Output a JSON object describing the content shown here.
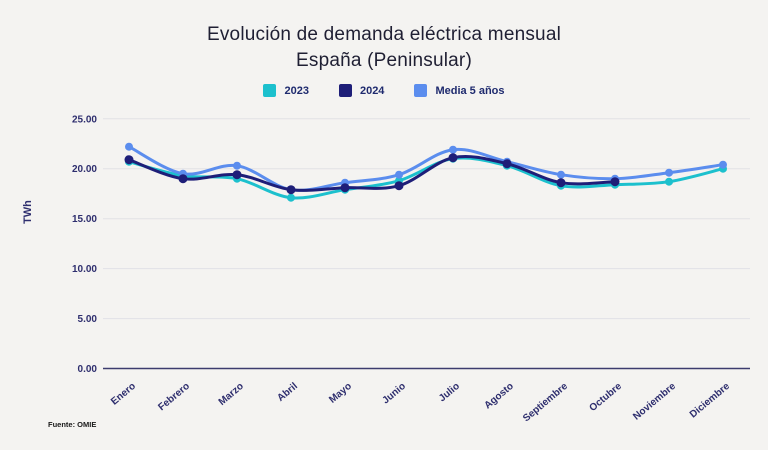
{
  "title": {
    "line1": "Evolución de demanda eléctrica mensual",
    "line2": "España (Peninsular)"
  },
  "legend": [
    {
      "label": "2023",
      "color": "#1cc0cd"
    },
    {
      "label": "2024",
      "color": "#1e1e78"
    },
    {
      "label": "Media 5 años",
      "color": "#5b8dee"
    }
  ],
  "source": "Fuente: OMIE",
  "colors": {
    "background": "#f4f3f1",
    "gridline": "#e1e1e6",
    "axis": "#3c3c6e",
    "tick_text": "#2e2e6e"
  },
  "chart_data": {
    "type": "line",
    "categories": [
      "Enero",
      "Febrero",
      "Marzo",
      "Abril",
      "Mayo",
      "Junio",
      "Julio",
      "Agosto",
      "Septiembre",
      "Octubre",
      "Noviembre",
      "Diciembre"
    ],
    "series": [
      {
        "name": "2023",
        "color": "#1cc0cd",
        "values": [
          20.7,
          19.3,
          19.0,
          17.1,
          17.9,
          18.8,
          21.0,
          20.3,
          18.3,
          18.4,
          18.7,
          20.0
        ]
      },
      {
        "name": "2024",
        "color": "#1e1e78",
        "values": [
          20.9,
          19.0,
          19.4,
          17.9,
          18.1,
          18.3,
          21.1,
          20.5,
          18.6,
          18.7,
          null,
          null
        ]
      },
      {
        "name": "Media 5 años",
        "color": "#5b8dee",
        "values": [
          22.2,
          19.5,
          20.3,
          17.9,
          18.6,
          19.4,
          21.9,
          20.7,
          19.4,
          19.0,
          19.6,
          20.4
        ]
      }
    ],
    "title": "Evolución de demanda eléctrica mensual España (Peninsular)",
    "xlabel": "",
    "ylabel": "TWh",
    "ylim": [
      0,
      25
    ],
    "yticks": [
      0,
      5,
      10,
      15,
      20,
      25
    ],
    "ytick_labels": [
      "0.00",
      "5.00",
      "10.00",
      "15.00",
      "20.00",
      "25.00"
    ],
    "grid": true,
    "legend_position": "top"
  }
}
